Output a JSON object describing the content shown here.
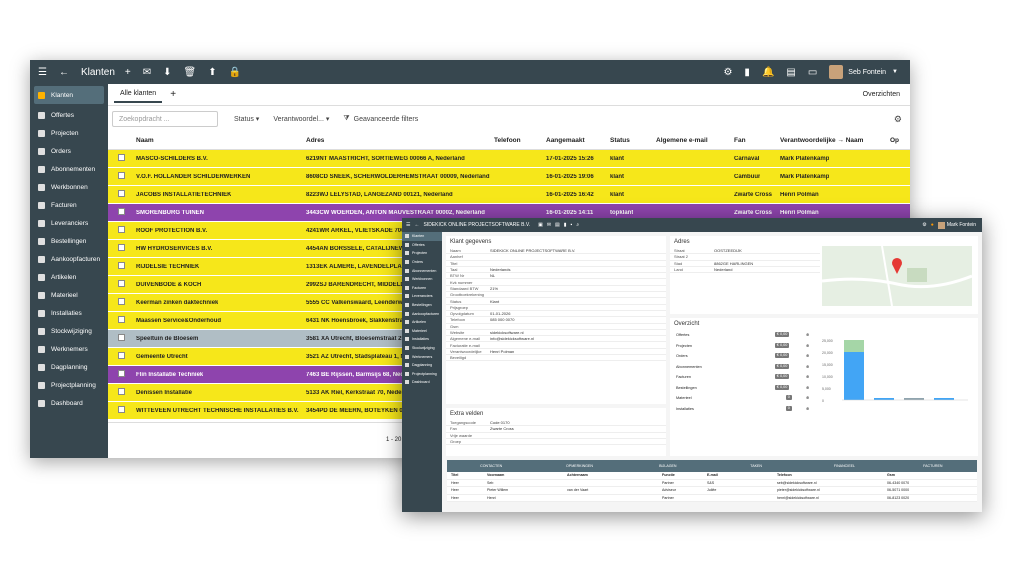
{
  "main": {
    "title": "Klanten",
    "user": "Seb Fontein",
    "header_right": "Overzichten",
    "tab_all": "Alle klanten",
    "search_placeholder": "Zoekopdracht ...",
    "filters": [
      "Status",
      "Verantwoordel...",
      "Geavanceerde filters"
    ],
    "columns": [
      "Naam",
      "Adres",
      "Telefoon",
      "Aangemaakt",
      "Status",
      "Algemene e-mail",
      "Fan",
      "Verantwoordelijke → Naam",
      "Op"
    ],
    "pager": "1 - 20",
    "sidebar": [
      "Klanten",
      "Offertes",
      "Projecten",
      "Orders",
      "Abonnementen",
      "Werkbonnen",
      "Facturen",
      "Leveranciers",
      "Bestellingen",
      "Aankoopfacturen",
      "Artikelen",
      "Materieel",
      "Installaties",
      "Stockwijziging",
      "Werknemers",
      "Dagplanning",
      "Projectplanning",
      "Dashboard"
    ],
    "rows": [
      {
        "c": "yellow",
        "naam": "MASCO-SCHILDERS B.V.",
        "adres": "6219NT MAASTRICHT, SORTIEWEG 00066 A, Nederland",
        "datum": "17-01-2025 15:26",
        "status": "klant",
        "fan": "Carnaval",
        "ver": "Mark Platenkamp"
      },
      {
        "c": "yellow",
        "naam": "V.O.F. HOLLANDER SCHILDERWERKEN",
        "adres": "8608CD SNEEK, SCHERWOLDERHEMSTRAAT 00009, Nederland",
        "datum": "16-01-2025 19:06",
        "status": "klant",
        "fan": "Cambuur",
        "ver": "Mark Platenkamp"
      },
      {
        "c": "yellow",
        "naam": "JACOBS INSTALLATIETECHNIEK",
        "adres": "8223WJ LELYSTAD, LANGEZAND 00121, Nederland",
        "datum": "16-01-2025 16:42",
        "status": "klant",
        "fan": "Zwarte Cross",
        "ver": "Henri Polman"
      },
      {
        "c": "purple",
        "naam": "SMORENBURG TUINEN",
        "adres": "3443CW WOERDEN, ANTON MAUVESTRAAT 00002, Nederland",
        "datum": "16-01-2025 14:11",
        "status": "topklant",
        "fan": "Zwarte Cross",
        "ver": "Henri Polman"
      },
      {
        "c": "yellow",
        "naam": "ROOF PROTECTION B.V.",
        "adres": "4241WR ARKEL, VLIETSKADE 7000",
        "datum": "",
        "status": "",
        "fan": "",
        "ver": ""
      },
      {
        "c": "yellow",
        "naam": "HW HYDROSERVICES B.V.",
        "adres": "4454AN BORSSELE, CATALIJNEWE",
        "datum": "",
        "status": "",
        "fan": "",
        "ver": ""
      },
      {
        "c": "yellow",
        "naam": "RIJDELSIE TECHNIEK",
        "adres": "1313EK ALMERE, LAVENDELPLANT",
        "datum": "",
        "status": "",
        "fan": "",
        "ver": ""
      },
      {
        "c": "yellow",
        "naam": "DUIVENBODE & KOCH",
        "adres": "2992SJ BARENDRECHT, MIDDELDI",
        "datum": "",
        "status": "",
        "fan": "",
        "ver": ""
      },
      {
        "c": "yellow",
        "naam": "Keerman zinken daktechniek",
        "adres": "5555 CC Valkenswaard, Leenderweg",
        "datum": "",
        "status": "",
        "fan": "",
        "ver": ""
      },
      {
        "c": "yellow",
        "naam": "Maassen Service&Onderhoud",
        "adres": "6431 NK Hoensbroek, Slakkenstraat",
        "datum": "",
        "status": "",
        "fan": "",
        "ver": ""
      },
      {
        "c": "gray",
        "naam": "Speeltuin de Bloesem",
        "adres": "3581 XA Utrecht, Bloesemstraat 25A,",
        "datum": "",
        "status": "",
        "fan": "",
        "ver": ""
      },
      {
        "c": "yellow",
        "naam": "Gemeente Utrecht",
        "adres": "3521 AZ Utrecht, Stadsplateau 1, Ne",
        "datum": "",
        "status": "",
        "fan": "",
        "ver": ""
      },
      {
        "c": "purple",
        "naam": "Flin Installatie Techniek",
        "adres": "7463 BE Rijssen, Barmsijs 68, Neder",
        "datum": "",
        "status": "",
        "fan": "",
        "ver": ""
      },
      {
        "c": "yellow",
        "naam": "Denissen Installatie",
        "adres": "5133 AK Riel, Kerkstraat 70, Nederla",
        "datum": "",
        "status": "",
        "fan": "",
        "ver": ""
      },
      {
        "c": "yellow",
        "naam": "WITTEVEEN UTRECHT TECHNISCHE INSTALLATIES B.V.",
        "adres": "3454PD DE MEERN, BOTEYKEN 00",
        "datum": "",
        "status": "",
        "fan": "",
        "ver": ""
      }
    ]
  },
  "detail": {
    "title": "SIDEKICK ONLINE PROJECTSOFTWARE B.V.",
    "user": "Mark Fontein",
    "klant_title": "Klant gegevens",
    "adres_title": "Adres",
    "overzicht_title": "Overzicht",
    "extra_title": "Extra velden",
    "fields": [
      {
        "l": "Naam",
        "v": "SIDEKICK ONLINE PROJECTSOFTWARE B.V."
      },
      {
        "l": "Aanhef",
        "v": ""
      },
      {
        "l": "Titel",
        "v": ""
      },
      {
        "l": "Taal",
        "v": "Nederlands"
      },
      {
        "l": "BTW Nr",
        "v": "NL"
      },
      {
        "l": "Kvk nummer",
        "v": ""
      },
      {
        "l": "Standaard BTW",
        "v": "21%"
      },
      {
        "l": "Grootboekrekening",
        "v": ""
      },
      {
        "l": "Status",
        "v": "Klant"
      },
      {
        "l": "Prijsgroep",
        "v": ""
      },
      {
        "l": "Opvolgdatum",
        "v": "01-01-2026"
      },
      {
        "l": "Telefoon",
        "v": "085 000 0070"
      },
      {
        "l": "Gsm",
        "v": ""
      },
      {
        "l": "Website",
        "v": "sidekicksoftware.nl"
      },
      {
        "l": "Algemene e-mail",
        "v": "info@sidekicksoftware.nl"
      },
      {
        "l": "Facturatie e-mail",
        "v": ""
      },
      {
        "l": "Verantwoordelijke",
        "v": "Henri Polman"
      },
      {
        "l": "Beveiligd",
        "v": ""
      }
    ],
    "adres_fields": [
      {
        "l": "Straat",
        "v": "OOSTZEEDIJK"
      },
      {
        "l": "Straat 2",
        "v": ""
      },
      {
        "l": "Stad",
        "v": "8862GE  HARLINGEN"
      },
      {
        "l": "Land",
        "v": "Nederland"
      }
    ],
    "overview": [
      {
        "l": "Offertes",
        "b": "€ 0,00"
      },
      {
        "l": "Projecten",
        "b": "€ 0,00"
      },
      {
        "l": "Orders",
        "b": "€ 0,00"
      },
      {
        "l": "Abonnementen",
        "b": "€ 0,00"
      },
      {
        "l": "Facturen",
        "b": "€ 0,00"
      },
      {
        "l": "Bestellingen",
        "b": "€ 0,00"
      },
      {
        "l": "Materieel",
        "b": "0"
      },
      {
        "l": "Installaties",
        "b": "0"
      }
    ],
    "extra": [
      {
        "l": "Toegangscode",
        "v": "Code 0170"
      },
      {
        "l": "Fan",
        "v": "Zwarte Cross"
      },
      {
        "l": "Vrije waarde",
        "v": ""
      },
      {
        "l": "Groep",
        "v": ""
      }
    ],
    "tabs": [
      "CONTACTEN",
      "OPMERKINGEN",
      "BIJLAGEN",
      "TAKEN",
      "FINANCIEEL",
      "FACTUREN"
    ],
    "contact_head": [
      "Titel",
      "Voornaam",
      "Achternaam",
      "Functie",
      "E-mail",
      "Telefoon",
      "Gsm"
    ],
    "contacts": [
      [
        "Heer",
        "Seb",
        "",
        "Partner",
        "S&S",
        "seb@sidekicksoftware.nl",
        "06-4340 0070"
      ],
      [
        "Heer",
        "Pieter Willem",
        "van der Vaart",
        "Adviseur",
        "Juliëe",
        "pieter@sidekicksoftware.nl",
        "06-5071 0000"
      ],
      [
        "Heer",
        "Henri",
        "",
        "Partner",
        "",
        "henri@sidekicksoftware.nl",
        "06-8123 0020"
      ]
    ],
    "sidebar": [
      "Klanten",
      "Offertes",
      "Projecten",
      "Orders",
      "Abonnementen",
      "Werkbonnen",
      "Facturen",
      "Leveranciers",
      "Bestellingen",
      "Aankoopfacturen",
      "Artikelen",
      "Materieel",
      "Installaties",
      "Stockwijziging",
      "Werknemers",
      "Dagplanning",
      "Projectplanning",
      "Dashboard"
    ],
    "chart_axis": [
      "25,000",
      "20,000",
      "15,000",
      "10,000",
      "5,000",
      "0"
    ],
    "chart_cats": [
      "Offertes",
      "Orders",
      "Abonnementen",
      "Facturen",
      "Installaties"
    ]
  }
}
